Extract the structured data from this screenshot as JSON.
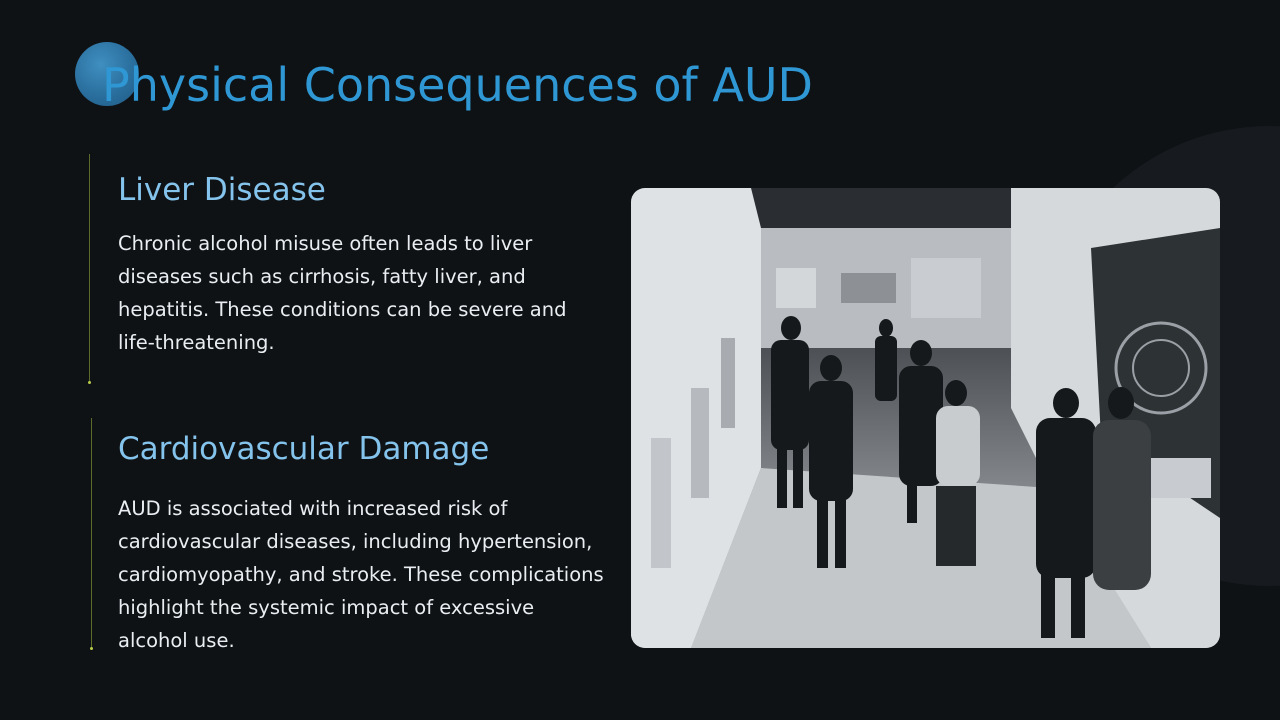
{
  "slide": {
    "title": "Physical Consequences of AUD",
    "sections": [
      {
        "heading": "Liver Disease",
        "body": "Chronic alcohol misuse often leads to liver diseases such as cirrhosis, fatty liver, and hepatitis. These conditions can be severe and life-threatening."
      },
      {
        "heading": "Cardiovascular Damage",
        "body": "AUD is associated with increased risk of cardiovascular diseases, including hypertension, cardiomyopathy, and stroke. These complications highlight the systemic impact of excessive alcohol use."
      }
    ]
  },
  "colors": {
    "background": "#0f1215",
    "title": "#2e97d4",
    "heading": "#84c3ec",
    "body_text": "#e9eef2",
    "accent_line": "#5b6b2a"
  },
  "image": {
    "description_icon": "museum-gallery-photo"
  }
}
